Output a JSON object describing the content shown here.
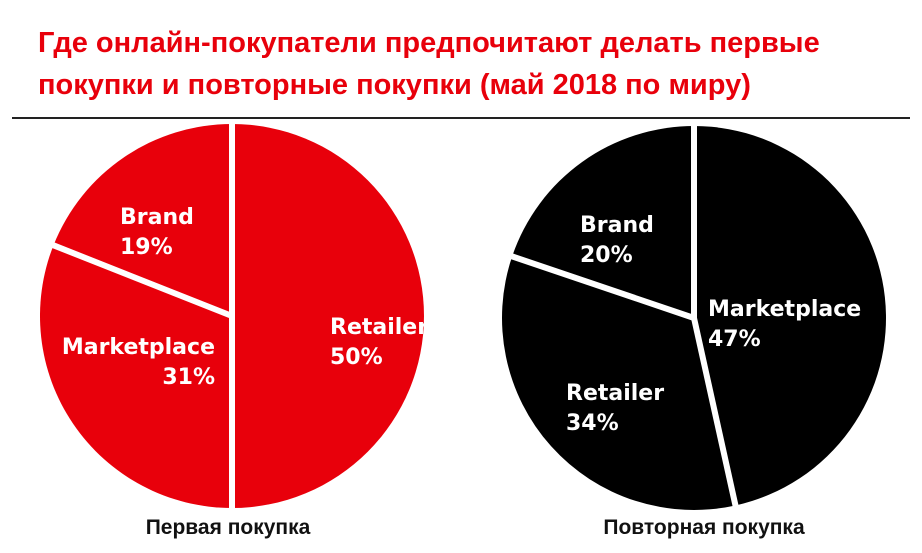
{
  "title": {
    "line1": "Где онлайн-покупатели предпочитают делать первые",
    "line2": "покупки и повторные покупки  (май 2018 по миру)"
  },
  "colors": {
    "accent": "#e8000b",
    "dark": "#000000",
    "separator": "#ffffff"
  },
  "chart_data": [
    {
      "type": "pie",
      "caption": "Первая покупка",
      "color": "#e8000b",
      "slices": [
        {
          "label": "Retailer",
          "value": 50,
          "value_text": "50%"
        },
        {
          "label": "Marketplace",
          "value": 31,
          "value_text": "31%"
        },
        {
          "label": "Brand",
          "value": 19,
          "value_text": "19%"
        }
      ]
    },
    {
      "type": "pie",
      "caption": "Повторная покупка",
      "color": "#000000",
      "slices": [
        {
          "label": "Marketplace",
          "value": 47,
          "value_text": "47%"
        },
        {
          "label": "Retailer",
          "value": 34,
          "value_text": "34%"
        },
        {
          "label": "Brand",
          "value": 20,
          "value_text": "20%"
        }
      ]
    }
  ]
}
